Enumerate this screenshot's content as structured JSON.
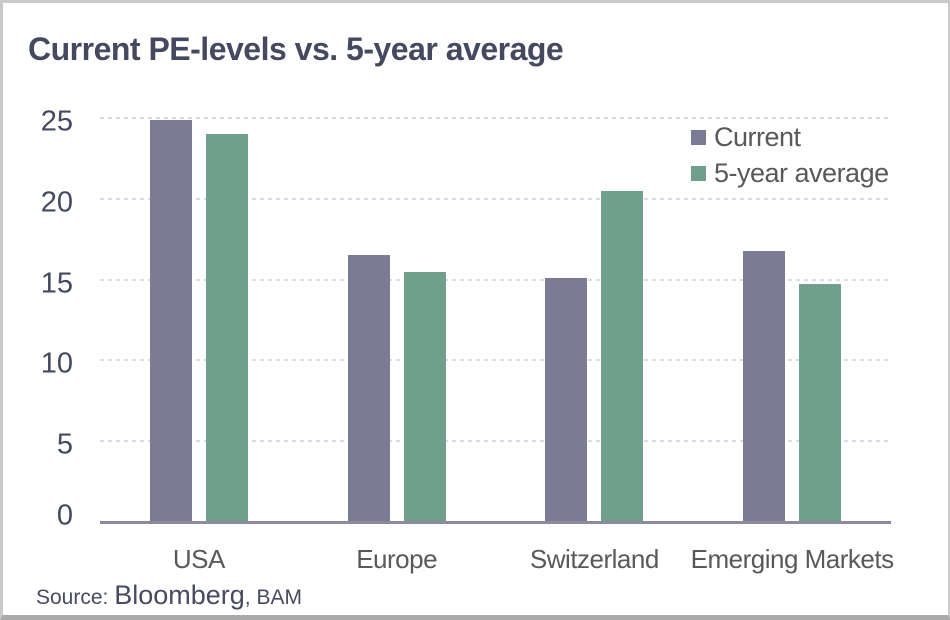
{
  "title": "Current PE-levels vs. 5-year average",
  "source": {
    "prefix": "Source: ",
    "main": "Bloomberg",
    "suffix": ", BAM"
  },
  "colors": {
    "title_text": "#454960",
    "axis_text": "#454960",
    "category_text": "#595959",
    "legend_text": "#595959",
    "gridline": "#dbdbe8",
    "axis_line": "#8b8b9b",
    "frame_border": "#c9c9c9",
    "frame_border_bottom": "#a9a9a9",
    "series_current": "#7c7b95",
    "series_average": "#70a08b"
  },
  "chart_data": {
    "type": "bar",
    "title": "Current PE-levels vs. 5-year average",
    "categories": [
      "USA",
      "Europe",
      "Switzerland",
      "Emerging Markets"
    ],
    "series": [
      {
        "name": "Current",
        "color": "#7c7b95",
        "values": [
          24.9,
          16.5,
          15.1,
          16.8
        ]
      },
      {
        "name": "5-year average",
        "color": "#70a08b",
        "values": [
          24.0,
          15.5,
          20.5,
          14.7
        ]
      }
    ],
    "xlabel": "",
    "ylabel": "",
    "ylim": [
      0,
      25
    ],
    "yticks": [
      0,
      5,
      10,
      15,
      20,
      25
    ],
    "grid": "horizontal-dashed",
    "legend_position": "top-right",
    "legend_entries": [
      "Current",
      "5-year average"
    ]
  }
}
